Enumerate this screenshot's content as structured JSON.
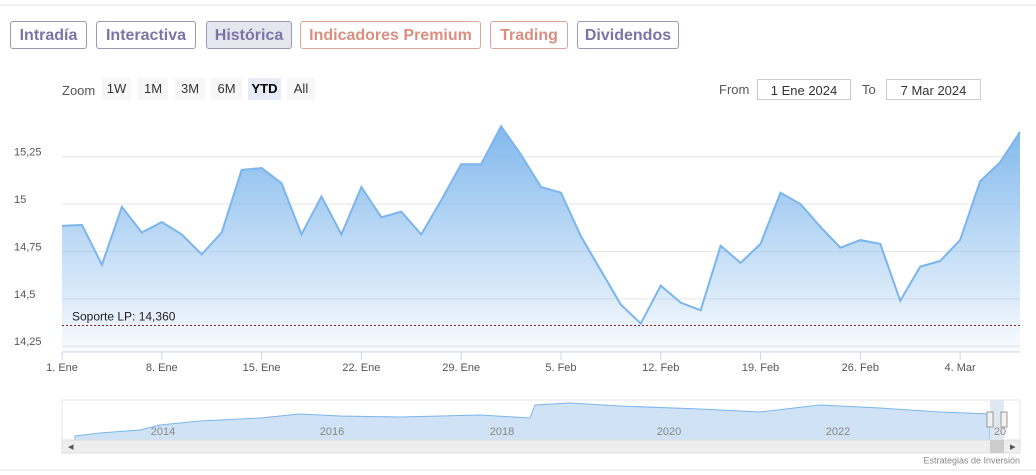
{
  "tabs": [
    "Intradía",
    "Interactiva",
    "Histórica",
    "Indicadores Premium",
    "Trading",
    "Dividendos"
  ],
  "zoom": {
    "label": "Zoom",
    "buttons": [
      "1W",
      "1M",
      "3M",
      "6M",
      "YTD",
      "All"
    ]
  },
  "range": {
    "from_label": "From",
    "from": "1 Ene 2024",
    "to_label": "To",
    "to": "7 Mar 2024"
  },
  "chart_data": {
    "type": "area",
    "color": "#7cb5ec",
    "grid": true,
    "categories": [
      "1. Ene",
      null,
      null,
      null,
      null,
      "8. Ene",
      null,
      null,
      null,
      null,
      "15. Ene",
      null,
      null,
      null,
      null,
      "22. Ene",
      null,
      null,
      null,
      null,
      "29. Ene",
      null,
      null,
      null,
      null,
      "5. Feb",
      null,
      null,
      null,
      null,
      "12. Feb",
      null,
      null,
      null,
      null,
      "19. Feb",
      null,
      null,
      null,
      null,
      "26. Feb",
      null,
      null,
      null,
      null,
      "4. Mar",
      null,
      null,
      null
    ],
    "values": [
      14.885,
      14.89,
      14.68,
      14.985,
      14.85,
      14.905,
      14.84,
      14.735,
      14.85,
      15.18,
      15.19,
      15.11,
      14.84,
      15.04,
      14.84,
      15.09,
      14.93,
      14.96,
      14.84,
      15.02,
      15.21,
      15.21,
      15.41,
      15.26,
      15.09,
      15.06,
      14.83,
      14.65,
      14.47,
      14.37,
      14.57,
      14.48,
      14.44,
      14.78,
      14.69,
      14.79,
      15.06,
      15.0,
      14.88,
      14.77,
      14.81,
      14.79,
      14.49,
      14.67,
      14.7,
      14.81,
      15.12,
      15.22,
      15.38
    ],
    "ylim": [
      14.22,
      15.48
    ],
    "yticks": [
      {
        "value": 14.25,
        "label": "14,25"
      },
      {
        "value": 14.5,
        "label": "14,5"
      },
      {
        "value": 14.75,
        "label": "14,75"
      },
      15,
      {
        "value": 15.25,
        "label": "15,25"
      }
    ],
    "annotations": [
      {
        "label": "Soporte LP: 14,360",
        "value": 14.36,
        "color": "#8b1a1a"
      }
    ]
  },
  "navigator": {
    "labels": [
      "2014",
      "2016",
      "2018",
      "2020",
      "2022",
      "20"
    ]
  },
  "credit": "Estrategias de Inversión"
}
